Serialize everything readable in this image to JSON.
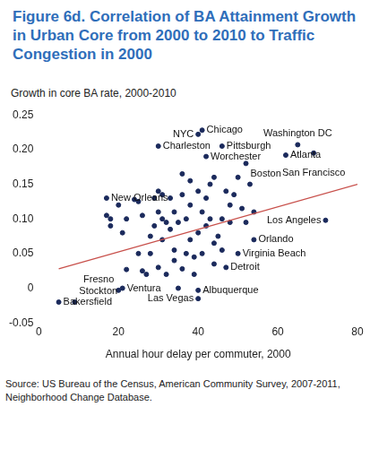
{
  "chart_data": {
    "type": "scatter",
    "title": "Figure 6d. Correlation of BA Attainment Growth in Urban Core from 2000 to 2010 to Traffic Congestion in 2000",
    "subtitle": "Growth in core BA rate, 2000-2010",
    "x_label": "Annual hour delay per commuter, 2000",
    "source": [
      "Source: US Bureau of the Census, American Community Survey, 2007-2011,",
      "Neighborhood Change Database."
    ],
    "color": "#1b2a5c",
    "marker": "circle",
    "grid": false,
    "x": [
      41,
      40,
      30,
      46,
      42,
      52,
      65,
      62,
      69,
      72,
      54,
      50,
      47,
      17,
      5,
      9,
      21,
      20,
      40,
      40,
      17,
      18,
      18,
      20,
      21,
      22,
      22,
      24,
      25,
      25,
      26,
      26,
      27,
      28,
      28,
      29,
      29,
      30,
      30,
      30,
      31,
      31,
      31,
      32,
      32,
      33,
      33,
      34,
      34,
      34,
      35,
      35,
      36,
      36,
      37,
      37,
      38,
      38,
      38,
      39,
      40,
      40,
      41,
      41,
      42,
      42,
      43,
      43,
      44,
      44,
      45,
      46,
      46,
      47,
      48,
      49,
      50,
      51,
      52,
      53,
      54,
      48,
      44,
      39,
      36
    ],
    "values": [
      0.228,
      0.222,
      0.205,
      0.205,
      0.19,
      0.18,
      0.207,
      0.192,
      0.195,
      0.098,
      0.07,
      0.05,
      0.03,
      0.13,
      -0.02,
      -0.02,
      0,
      -0.003,
      -0.003,
      -0.015,
      0.105,
      0.09,
      0.1,
      0.12,
      0.08,
      0.1,
      0.027,
      0.128,
      0.125,
      0.05,
      0.105,
      0.025,
      0.02,
      0.05,
      0.075,
      0.09,
      0.13,
      0.14,
      0.11,
      0.03,
      0.07,
      0.135,
      0.1,
      0.095,
      0.02,
      0.13,
      0.085,
      0.11,
      0.04,
      0.055,
      0.095,
      0,
      0.165,
      0.135,
      0.1,
      0.05,
      0.12,
      0.155,
      0.07,
      0.045,
      0.14,
      0.08,
      0.11,
      0.05,
      0.13,
      0.09,
      0.15,
      0.1,
      0.16,
      0.065,
      0.075,
      0.1,
      0.055,
      0.14,
      0.12,
      0.135,
      0.16,
      0.115,
      0.095,
      0.15,
      0.11,
      0.095,
      0.035,
      0.02,
      0.028
    ],
    "point_labels": [
      "Chicago",
      "NYC",
      "Charleston",
      "Pittsburgh",
      "Worchester",
      "Boston",
      "Washington DC",
      "Atlanta",
      "San Francisco",
      "Los Angeles",
      "Orlando",
      "Virginia Beach",
      "Detroit",
      "New Orleans",
      "Bakersfield",
      "Stockton",
      "Ventura",
      "Fresno",
      "Albuquerque",
      "Las Vegas",
      null,
      null,
      null,
      null,
      null,
      null,
      null,
      null,
      null,
      null,
      null,
      null,
      null,
      null,
      null,
      null,
      null,
      null,
      null,
      null,
      null,
      null,
      null,
      null,
      null,
      null,
      null,
      null,
      null,
      null,
      null,
      null,
      null,
      null,
      null,
      null,
      null,
      null,
      null,
      null,
      null,
      null,
      null,
      null,
      null,
      null,
      null,
      null,
      null,
      null,
      null,
      null,
      null,
      null,
      null,
      null,
      null,
      null,
      null,
      null,
      null,
      null,
      null,
      null,
      null
    ],
    "trend_line": {
      "type": "line",
      "x": [
        5,
        80
      ],
      "values": [
        0.028,
        0.15
      ],
      "color": "#c8504b",
      "line_style": "solid"
    },
    "xlim": [
      0,
      80
    ],
    "xticks": [
      0,
      20,
      40,
      60,
      80
    ],
    "ylim": [
      -0.05,
      0.25
    ],
    "yticks": [
      -0.05,
      0,
      0.05,
      {
        "value": 0.1,
        "label": "0.10"
      },
      0.15,
      {
        "value": 0.2,
        "label": "0.20"
      },
      0.25
    ]
  }
}
